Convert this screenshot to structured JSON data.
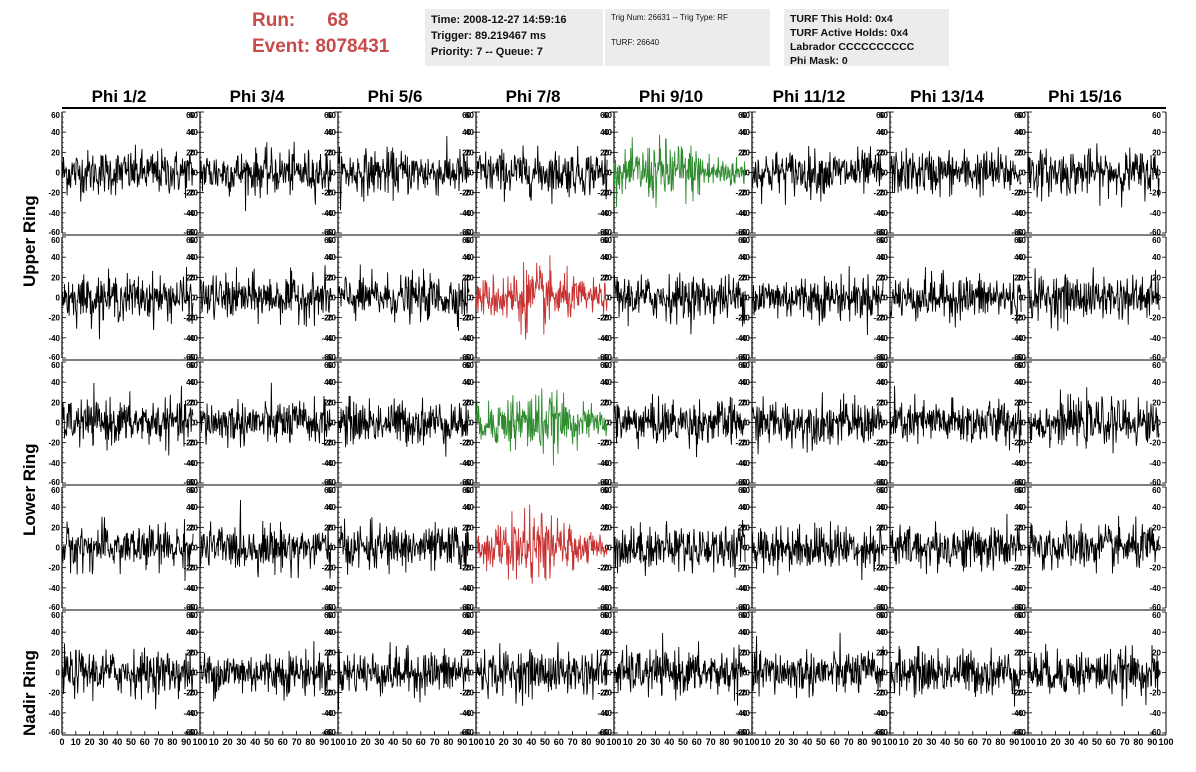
{
  "header": {
    "run_label": "Run:",
    "run_value": "68",
    "event_label": "Event:",
    "event_value": "8078431",
    "time": "Time: 2008-12-27 14:59:16",
    "trigger": "Trigger: 89.219467 ms",
    "priority": "Priority: 7 -- Queue: 7",
    "trig_num": "Trig Num: 26631 -- Trig Type: RF",
    "turf": "TURF: 26640",
    "turf_this_hold": "TURF This Hold: 0x4",
    "turf_active_holds": "TURF Active Holds: 0x4",
    "labrador": "Labrador CCCCCCCCCC",
    "phi_mask": "Phi Mask: 0"
  },
  "columns": [
    "Phi 1/2",
    "Phi 3/4",
    "Phi 5/6",
    "Phi 7/8",
    "Phi 9/10",
    "Phi 11/12",
    "Phi 13/14",
    "Phi 15/16"
  ],
  "ring_labels": [
    "Upper Ring",
    "Lower Ring",
    "Nadir Ring"
  ],
  "colors": {
    "header_red": "#c84b4b",
    "info_bg": "#ececec",
    "trace_default": "#000000",
    "trace_green": "#2e8b2e",
    "trace_red": "#c83232"
  },
  "chart_data": {
    "type": "line",
    "layout": "grid of 5 rows x 8 columns of waveform panels",
    "xlim": [
      0,
      100
    ],
    "ylim": [
      -60,
      60
    ],
    "x_tick_labels": [
      "0",
      "10",
      "20",
      "30",
      "40",
      "50",
      "60",
      "70",
      "80",
      "90",
      "100"
    ],
    "y_tick_labels": [
      "-60",
      "-40",
      "-20",
      "0",
      "20",
      "40",
      "60"
    ],
    "rows": [
      "Upper Ring (1)",
      "Upper Ring (2)",
      "Lower Ring (1)",
      "Lower Ring (2)",
      "Nadir Ring"
    ],
    "highlighted_panels": [
      {
        "row": 0,
        "col": 4,
        "color": "green"
      },
      {
        "row": 1,
        "col": 3,
        "color": "red"
      },
      {
        "row": 2,
        "col": 3,
        "color": "green"
      },
      {
        "row": 3,
        "col": 3,
        "color": "red"
      }
    ],
    "series_description": "noise-like voltage waveforms, approximately ±20 amplitude, spanning x 0-95"
  }
}
